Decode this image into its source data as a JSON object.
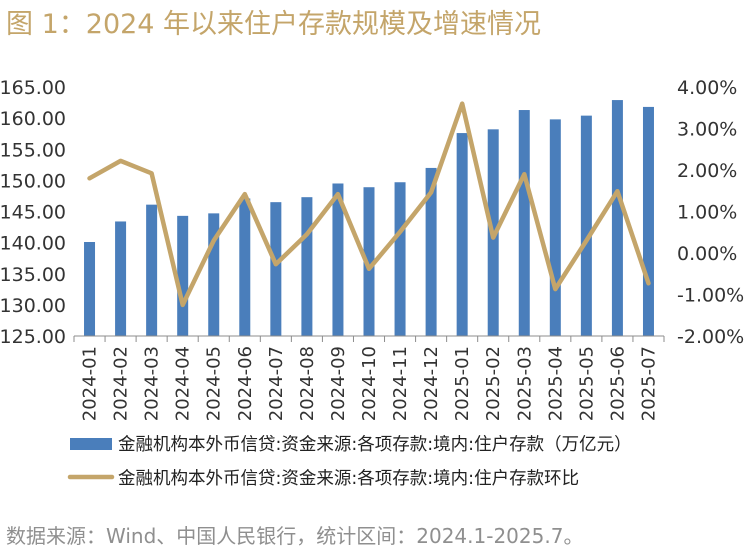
{
  "figure": {
    "title": "图 1：2024 年以来住户存款规模及增速情况",
    "source": "数据来源：Wind、中国人民银行，统计区间：2024.1-2025.7。"
  },
  "colors": {
    "bar": "#4A7EBB",
    "line": "#C4A56A",
    "title": "#C4A56A",
    "source": "#8f8f8f"
  },
  "chart_data": {
    "type": "bar",
    "categories": [
      "2024-01",
      "2024-02",
      "2024-03",
      "2024-04",
      "2024-05",
      "2024-06",
      "2024-07",
      "2024-08",
      "2024-09",
      "2024-10",
      "2024-11",
      "2024-12",
      "2025-01",
      "2025-02",
      "2025-03",
      "2025-04",
      "2025-05",
      "2025-06",
      "2025-07"
    ],
    "series": [
      {
        "name": "金融机构本外币信贷:资金来源:各项存款:境内:住户存款（万亿元）",
        "type": "bar",
        "axis": "left",
        "values": [
          140.1,
          143.4,
          146.1,
          144.3,
          144.7,
          147.1,
          146.5,
          147.3,
          149.5,
          148.9,
          149.7,
          152.0,
          157.6,
          158.2,
          161.3,
          159.8,
          160.4,
          162.9,
          161.8
        ]
      },
      {
        "name": "金融机构本外币信贷:资金来源:各项存款:境内:住户存款环比",
        "type": "line",
        "axis": "right",
        "values": [
          1.8,
          2.22,
          1.92,
          -1.25,
          0.3,
          1.42,
          -0.27,
          0.45,
          1.42,
          -0.38,
          0.51,
          1.46,
          3.6,
          0.37,
          1.9,
          -0.87,
          0.3,
          1.49,
          -0.73
        ]
      }
    ],
    "ylim": [
      125,
      165
    ],
    "yticks": [
      "165.00",
      "160.00",
      "155.00",
      "150.00",
      "145.00",
      "140.00",
      "135.00",
      "130.00",
      "125.00"
    ],
    "y2lim": [
      -2,
      4
    ],
    "y2ticks": [
      "4.00%",
      "3.00%",
      "2.00%",
      "1.00%",
      "0.00%",
      "-1.00%",
      "-2.00%"
    ],
    "legend_position": "bottom",
    "grid": false
  }
}
